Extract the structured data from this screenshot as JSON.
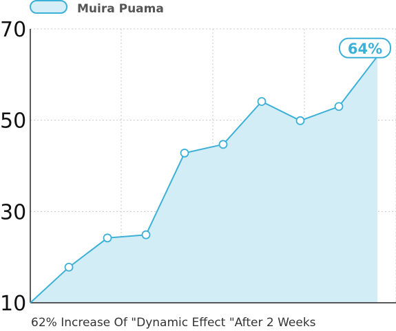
{
  "chart_data": {
    "type": "area",
    "series": [
      {
        "name": "Muira Puama",
        "x": [
          0,
          1,
          2,
          3,
          4,
          5,
          6,
          7,
          8,
          9
        ],
        "values": [
          10,
          17.8,
          24.2,
          24.9,
          42.8,
          44.7,
          54.1,
          49.9,
          53.0,
          64.0
        ]
      }
    ],
    "xlabel": "62% Increase Of \"Dynamic Effect \"After 2 Weeks",
    "ylabel": "",
    "ylim": [
      10,
      70
    ],
    "yticks": [
      "10",
      "30",
      "50",
      "70"
    ],
    "grid": true,
    "legend_position": "top-left",
    "callout": {
      "index": 9,
      "text": "64%"
    },
    "colors": {
      "line": "#3cb0d6",
      "fill": "#d3edf6",
      "legend_fill": "#d6eef7",
      "grid": "#c8c8c8",
      "axis": "#222222",
      "callout_text": "#3cb0d6"
    }
  }
}
